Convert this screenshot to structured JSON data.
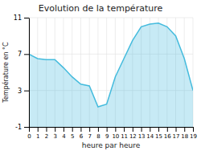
{
  "chart_data": {
    "type": "area",
    "title": "Evolution de la température",
    "xlabel": "heure par heure",
    "ylabel": "Température en °C",
    "x": [
      0,
      1,
      2,
      3,
      4,
      5,
      6,
      7,
      8,
      9,
      10,
      11,
      12,
      13,
      14,
      15,
      16,
      17,
      18,
      19
    ],
    "values": [
      7.0,
      6.5,
      6.4,
      6.4,
      5.5,
      4.5,
      3.7,
      3.5,
      1.2,
      1.5,
      4.5,
      6.5,
      8.5,
      10.0,
      10.3,
      10.4,
      10.0,
      9.0,
      6.5,
      3.0
    ],
    "color": "#44bbdd",
    "xlim": [
      0,
      19
    ],
    "ylim": [
      -1,
      11
    ],
    "xticks": [
      0,
      1,
      2,
      3,
      4,
      5,
      6,
      7,
      8,
      9,
      10,
      11,
      12,
      13,
      14,
      15,
      16,
      17,
      18,
      19
    ],
    "yticks": [
      -1,
      3,
      7,
      11
    ],
    "grid": true
  }
}
